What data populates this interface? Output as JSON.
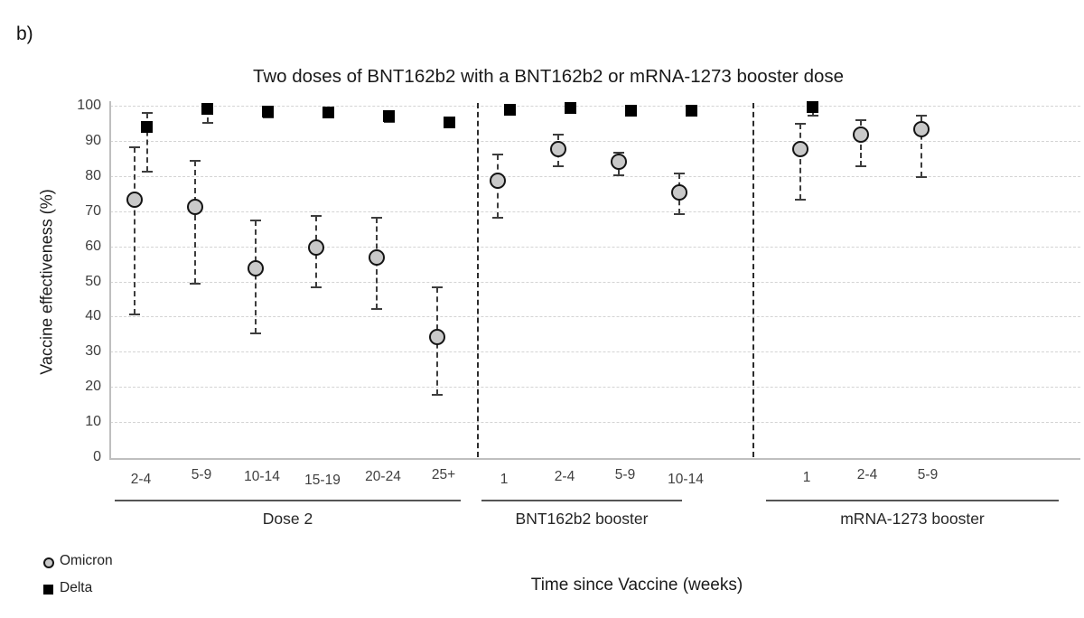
{
  "panel_label": "b)",
  "chart_data": {
    "type": "scatter",
    "title": "Two doses of BNT162b2 with a BNT162b2 or mRNA-1273 booster dose",
    "ylabel": "Vaccine effectiveness (%)",
    "xlabel": "Time since Vaccine (weeks)",
    "ylim": [
      0,
      100
    ],
    "yticks": [
      100,
      90,
      80,
      70,
      60,
      50,
      40,
      30,
      20,
      10,
      0
    ],
    "grid": "horizontal-dashed",
    "legend_position": "bottom-left",
    "point_format": "[value, ci_low, ci_high] in percent vaccine effectiveness",
    "legend": [
      {
        "label": "Omicron",
        "marker": "circle",
        "fill": "#c9c9c9",
        "stroke": "#141414"
      },
      {
        "label": "Delta",
        "marker": "square",
        "fill": "#000000"
      }
    ],
    "colors": {
      "omicron_fill": "#c9c9c9",
      "omicron_stroke": "#141414",
      "delta_fill": "#000000",
      "errorbar": "#3d3d3d",
      "grid": "#d4d4d4",
      "axis": "#bfbfbf",
      "divider": "#2b2b2b",
      "underline": "#555555",
      "text": "#262626"
    },
    "groups": [
      {
        "label": "Dose 2",
        "slot_start": 0,
        "categories": [
          "2-4",
          "5-9",
          "10-14",
          "15-19",
          "20-24",
          "25+"
        ],
        "omicron": [
          [
            73.5,
            41,
            88.5
          ],
          [
            71.5,
            49.5,
            84.5
          ],
          [
            54,
            35.5,
            67.5
          ],
          [
            60,
            48.5,
            69
          ],
          [
            57,
            42.5,
            68.5
          ],
          [
            34.5,
            18,
            48.5
          ]
        ],
        "delta": [
          [
            94,
            81.5,
            98.3
          ],
          [
            99.3,
            95.3,
            100
          ],
          [
            98.5,
            96.8,
            99.6
          ],
          [
            98.3,
            97.4,
            99.1
          ],
          [
            97.2,
            95.6,
            98.4
          ],
          [
            95.3,
            94.2,
            96.4
          ]
        ]
      },
      {
        "label": "BNT162b2 booster",
        "slot_start": 6,
        "categories": [
          "1",
          "2-4",
          "5-9",
          "10-14"
        ],
        "omicron": [
          [
            79,
            68.5,
            86.5
          ],
          [
            88,
            83,
            92
          ],
          [
            84.3,
            80.5,
            87
          ],
          [
            75.5,
            69.5,
            81
          ]
        ],
        "delta": [
          [
            99.1,
            98.4,
            99.7
          ],
          [
            99.4,
            98.9,
            99.8
          ],
          [
            98.8,
            98.2,
            99.3
          ],
          [
            98.6,
            98.1,
            99.1
          ]
        ]
      },
      {
        "label": "mRNA-1273 booster",
        "slot_start": 11,
        "categories": [
          "1",
          "2-4",
          "5-9"
        ],
        "omicron": [
          [
            88,
            73.5,
            95.2
          ],
          [
            92,
            83,
            96.1
          ],
          [
            93.5,
            80,
            97.4
          ]
        ],
        "delta": [
          [
            99.7,
            97.4,
            100
          ],
          null,
          null
        ]
      }
    ]
  }
}
